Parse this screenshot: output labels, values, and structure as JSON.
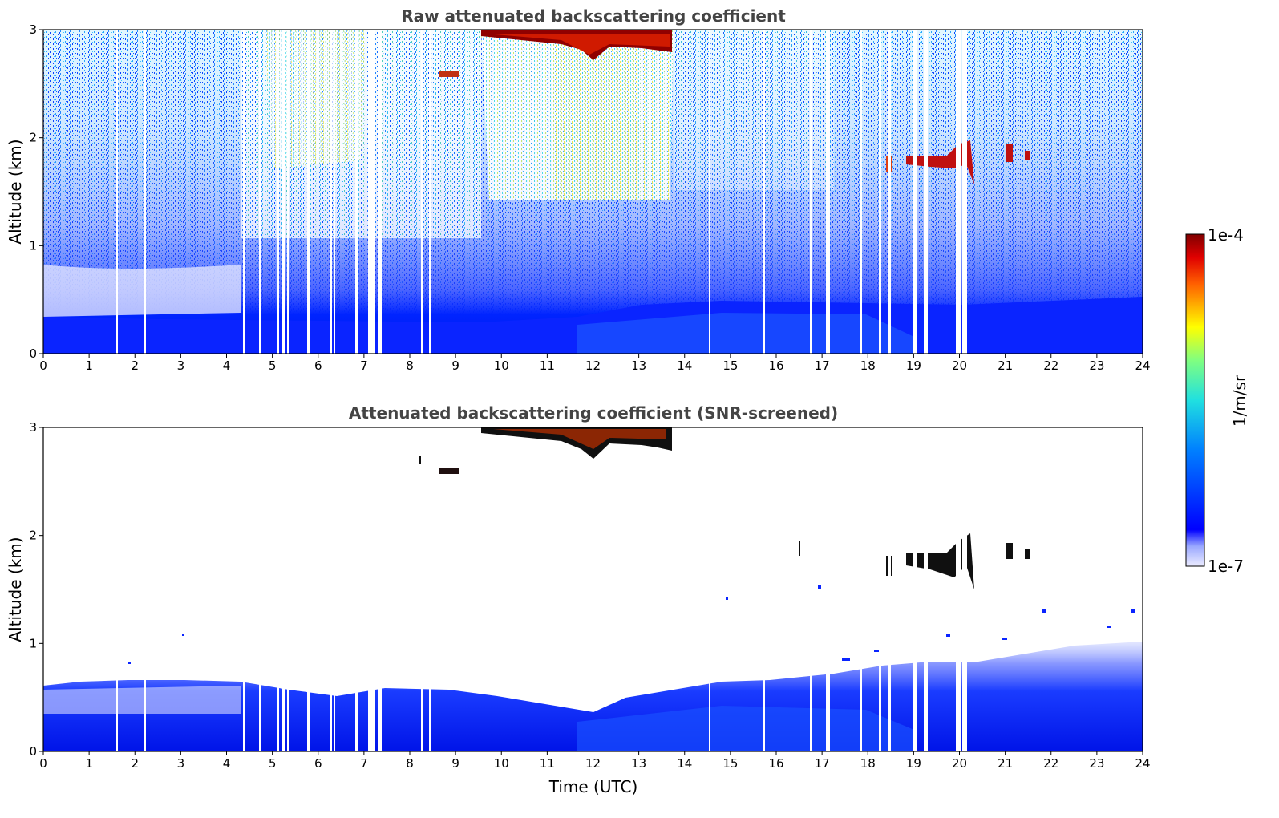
{
  "chart_data": [
    {
      "type": "heatmap",
      "title": "Raw attenuated backscattering coefficient",
      "xlabel": "",
      "ylabel": "Altitude (km)",
      "xlim": [
        0,
        24
      ],
      "ylim": [
        0,
        3
      ],
      "xticks": [
        "0",
        "1",
        "2",
        "3",
        "4",
        "5",
        "6",
        "7",
        "8",
        "9",
        "10",
        "11",
        "12",
        "13",
        "14",
        "15",
        "16",
        "17",
        "18",
        "19",
        "20",
        "21",
        "22",
        "23",
        "24"
      ],
      "yticks": [
        "0",
        "1",
        "2",
        "3"
      ],
      "features": [
        {
          "description": "boundary layer (dense, high values)",
          "x_range": [
            0,
            24
          ],
          "y_range": [
            0,
            0.45
          ]
        },
        {
          "description": "aerosol / noise layer (yellow-green)",
          "x_range": [
            9.5,
            13.8
          ],
          "y_range": [
            1.5,
            3
          ]
        },
        {
          "description": "cloud base near top",
          "x_range": [
            9.6,
            13.7
          ],
          "y_range": [
            2.7,
            3
          ]
        },
        {
          "description": "cloud layer",
          "x_range": [
            18.5,
            21.6
          ],
          "y_range": [
            1.5,
            2.05
          ]
        }
      ],
      "gaps_x": [
        7.1,
        7.3,
        8.3,
        17.0,
        17.8,
        18.3,
        19.0,
        19.2,
        19.95,
        20.1
      ]
    },
    {
      "type": "heatmap",
      "title": "Attenuated backscattering coefficient (SNR-screened)",
      "xlabel": "Time (UTC)",
      "ylabel": "Altitude (km)",
      "xlim": [
        0,
        24
      ],
      "ylim": [
        0,
        3
      ],
      "xticks": [
        "0",
        "1",
        "2",
        "3",
        "4",
        "5",
        "6",
        "7",
        "8",
        "9",
        "10",
        "11",
        "12",
        "13",
        "14",
        "15",
        "16",
        "17",
        "18",
        "19",
        "20",
        "21",
        "22",
        "23",
        "24"
      ],
      "yticks": [
        "0",
        "1",
        "2",
        "3"
      ],
      "features": [
        {
          "description": "boundary layer",
          "x_range": [
            0,
            24
          ],
          "y_range": [
            0,
            0.6
          ]
        },
        {
          "description": "cloud base near top",
          "x_range": [
            9.6,
            13.7
          ],
          "y_range": [
            2.7,
            3
          ]
        },
        {
          "description": "cloud layer",
          "x_range": [
            18.5,
            21.6
          ],
          "y_range": [
            1.5,
            2.05
          ]
        }
      ]
    }
  ],
  "colorbar": {
    "label": "1/m/sr",
    "max_label": "1e-4",
    "min_label": "1e-7",
    "colormap": "jet",
    "scale": "log"
  }
}
